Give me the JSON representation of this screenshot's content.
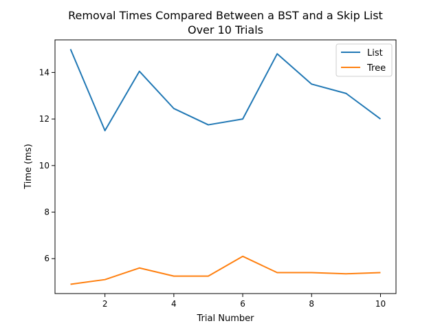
{
  "chart_data": {
    "type": "line",
    "title": "Removal Times Compared Between a BST and a Skip List",
    "subtitle": "Over 10 Trials",
    "xlabel": "Trial Number",
    "ylabel": "Time (ms)",
    "x": [
      1,
      2,
      3,
      4,
      5,
      6,
      7,
      8,
      9,
      10
    ],
    "xlim": [
      0.55,
      10.45
    ],
    "ylim": [
      4.5,
      15.4
    ],
    "xticks": [
      2,
      4,
      6,
      8,
      10
    ],
    "xtick_labels": [
      "2",
      "4",
      "6",
      "8",
      "10"
    ],
    "yticks": [
      6,
      8,
      10,
      12,
      14
    ],
    "ytick_labels": [
      "6",
      "8",
      "10",
      "12",
      "14"
    ],
    "grid": false,
    "legend_position": "top-right",
    "series": [
      {
        "name": "List",
        "color": "#1f77b4",
        "values": [
          15.0,
          11.5,
          14.05,
          12.45,
          11.75,
          12.0,
          14.8,
          13.5,
          13.1,
          12.0
        ]
      },
      {
        "name": "Tree",
        "color": "#ff7f0e",
        "values": [
          4.9,
          5.1,
          5.6,
          5.25,
          5.25,
          6.1,
          5.4,
          5.4,
          5.35,
          5.4
        ]
      }
    ]
  }
}
